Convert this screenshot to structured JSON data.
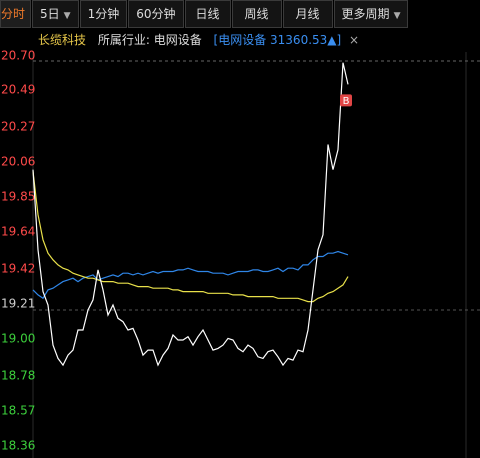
{
  "tabs": [
    "分时",
    "5日",
    "1分钟",
    "60分钟",
    "日线",
    "周线",
    "月线",
    "更多周期"
  ],
  "header": {
    "stock": "长缆科技",
    "industry": "所属行业: 电网设备",
    "index": "[电网设备 31360.53▲]",
    "close": "×"
  },
  "chart_data": {
    "type": "line",
    "ylim": [
      18.36,
      20.7
    ],
    "yticks": [
      {
        "value": 20.7,
        "label": "20.70"
      },
      20.49,
      20.27,
      20.06,
      19.85,
      19.64,
      19.42,
      19.21,
      {
        "value": 19.0,
        "label": "19.00"
      },
      18.78,
      18.57,
      18.36
    ],
    "baseline": 19.21,
    "label_colors": {
      "up": "#ff4a4a",
      "flat": "#cfcfcf",
      "down": "#3ccf3c"
    },
    "marker": "B",
    "series": [
      {
        "color": "#ffffff",
        "values": [
          20.05,
          19.57,
          19.32,
          19.24,
          19.0,
          18.92,
          18.88,
          18.94,
          18.97,
          19.09,
          19.09,
          19.21,
          19.27,
          19.45,
          19.33,
          19.18,
          19.24,
          19.16,
          19.14,
          19.09,
          19.1,
          19.03,
          18.94,
          18.97,
          18.97,
          18.88,
          18.94,
          18.98,
          19.06,
          19.03,
          19.03,
          19.05,
          19.0,
          19.05,
          19.09,
          19.03,
          18.97,
          18.98,
          19.0,
          19.04,
          19.03,
          18.98,
          18.96,
          19.0,
          18.98,
          18.93,
          18.92,
          18.96,
          18.97,
          18.93,
          18.88,
          18.92,
          18.91,
          18.97,
          18.96,
          19.09,
          19.33,
          19.57,
          19.66,
          20.2,
          20.05,
          20.17,
          20.69,
          20.56
        ]
      },
      {
        "color": "#e8e04a",
        "values": [
          20.04,
          19.78,
          19.63,
          19.55,
          19.51,
          19.48,
          19.46,
          19.45,
          19.43,
          19.42,
          19.41,
          19.4,
          19.4,
          19.39,
          19.38,
          19.38,
          19.38,
          19.37,
          19.37,
          19.37,
          19.36,
          19.35,
          19.35,
          19.35,
          19.34,
          19.34,
          19.34,
          19.34,
          19.33,
          19.33,
          19.32,
          19.32,
          19.32,
          19.32,
          19.32,
          19.31,
          19.31,
          19.31,
          19.31,
          19.31,
          19.3,
          19.3,
          19.3,
          19.29,
          19.29,
          19.29,
          19.29,
          19.29,
          19.29,
          19.28,
          19.28,
          19.28,
          19.28,
          19.28,
          19.27,
          19.26,
          19.26,
          19.28,
          19.29,
          19.31,
          19.32,
          19.34,
          19.36,
          19.41
        ]
      },
      {
        "color": "#2f86e8",
        "values": [
          19.33,
          19.3,
          19.28,
          19.33,
          19.34,
          19.36,
          19.38,
          19.39,
          19.4,
          19.38,
          19.4,
          19.41,
          19.42,
          19.39,
          19.4,
          19.41,
          19.42,
          19.41,
          19.43,
          19.43,
          19.42,
          19.43,
          19.42,
          19.43,
          19.44,
          19.43,
          19.44,
          19.44,
          19.44,
          19.45,
          19.45,
          19.46,
          19.45,
          19.44,
          19.44,
          19.44,
          19.43,
          19.43,
          19.43,
          19.42,
          19.43,
          19.44,
          19.44,
          19.44,
          19.45,
          19.45,
          19.44,
          19.44,
          19.45,
          19.46,
          19.44,
          19.46,
          19.46,
          19.45,
          19.48,
          19.48,
          19.51,
          19.53,
          19.53,
          19.55,
          19.55,
          19.56,
          19.55,
          19.54
        ]
      }
    ]
  }
}
